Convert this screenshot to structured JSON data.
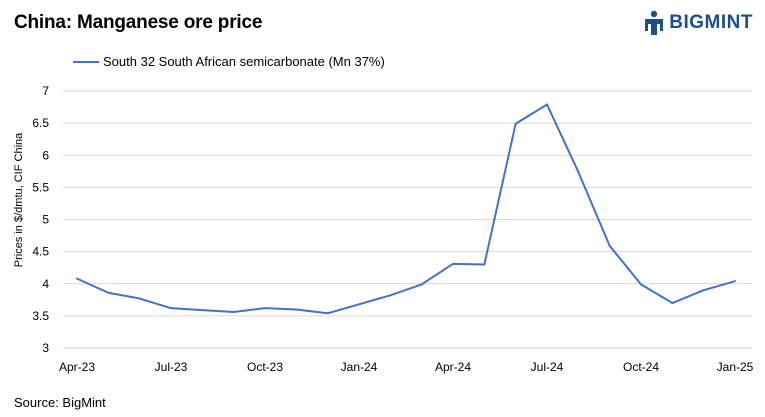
{
  "title": "China: Manganese ore price",
  "logo": {
    "text": "BIGMINT"
  },
  "source": "Source: BigMint",
  "chart_data": {
    "type": "line",
    "title": "China: Manganese ore price",
    "xlabel": "",
    "ylabel": "Prices in $/dmtu, CIF China",
    "ylim": [
      3,
      7
    ],
    "yticks": [
      "3",
      "3.5",
      "4",
      "4.5",
      "5",
      "5.5",
      "6",
      "6.5",
      "7"
    ],
    "xtick_labels": [
      "Apr-23",
      "Jul-23",
      "Oct-23",
      "Jan-24",
      "Apr-24",
      "Jul-24",
      "Oct-24",
      "Jan-25"
    ],
    "categories": [
      "Apr-23",
      "May-23",
      "Jun-23",
      "Jul-23",
      "Aug-23",
      "Sep-23",
      "Oct-23",
      "Nov-23",
      "Dec-23",
      "Jan-24",
      "Feb-24",
      "Mar-24",
      "Apr-24",
      "May-24",
      "Jun-24",
      "Jul-24",
      "Aug-24",
      "Sep-24",
      "Oct-24",
      "Nov-24",
      "Dec-24",
      "Jan-25"
    ],
    "series": [
      {
        "name": "South 32 South African semicarbonate (Mn 37%)",
        "color": "#4472c4",
        "values": [
          4.08,
          3.86,
          3.77,
          3.62,
          3.59,
          3.56,
          3.62,
          3.6,
          3.54,
          3.68,
          3.82,
          3.99,
          4.31,
          4.3,
          6.49,
          6.79,
          5.74,
          4.59,
          3.99,
          3.7,
          3.9,
          4.04
        ]
      }
    ],
    "grid": true,
    "legend_position": "top-left"
  }
}
